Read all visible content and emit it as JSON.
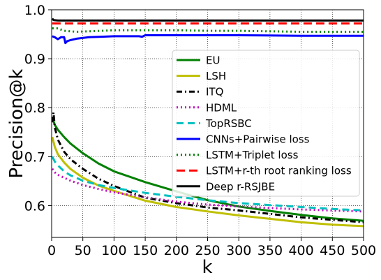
{
  "chart_data": {
    "type": "line",
    "xlabel": "k",
    "ylabel": "Precision@k",
    "xlim": [
      0,
      500
    ],
    "ylim": [
      0.535,
      1.0
    ],
    "xticks": [
      0,
      50,
      100,
      150,
      200,
      250,
      300,
      350,
      400,
      450,
      500
    ],
    "yticks": [
      0.6,
      0.7,
      0.8,
      0.9,
      1.0
    ],
    "xtick_labels": [
      "0",
      "50",
      "100",
      "150",
      "200",
      "250",
      "300",
      "350",
      "400",
      "450",
      "500"
    ],
    "ytick_labels": [
      "0.6",
      "0.7",
      "0.8",
      "0.9",
      "1.0"
    ],
    "grid": true,
    "legend_position": "center-right",
    "series": [
      {
        "name": "EU",
        "color": "#008000",
        "dash": "solid",
        "width": 3,
        "x": [
          1,
          5,
          10,
          20,
          30,
          50,
          75,
          100,
          150,
          200,
          250,
          300,
          350,
          400,
          450,
          500
        ],
        "y": [
          0.78,
          0.765,
          0.755,
          0.74,
          0.727,
          0.707,
          0.686,
          0.67,
          0.648,
          0.629,
          0.611,
          0.598,
          0.589,
          0.581,
          0.574,
          0.569
        ]
      },
      {
        "name": "LSH",
        "color": "#bfbf00",
        "dash": "solid",
        "width": 3,
        "x": [
          1,
          5,
          10,
          20,
          30,
          50,
          75,
          100,
          150,
          200,
          250,
          300,
          350,
          400,
          450,
          500
        ],
        "y": [
          0.74,
          0.72,
          0.705,
          0.688,
          0.675,
          0.657,
          0.641,
          0.63,
          0.61,
          0.597,
          0.588,
          0.58,
          0.573,
          0.566,
          0.561,
          0.558
        ]
      },
      {
        "name": "ITQ",
        "color": "#000000",
        "dash": "8,4,2,4",
        "width": 3,
        "x": [
          1,
          3,
          5,
          10,
          20,
          30,
          50,
          75,
          100,
          150,
          200,
          250,
          300,
          350,
          400,
          450,
          500
        ],
        "y": [
          0.77,
          0.79,
          0.76,
          0.735,
          0.71,
          0.695,
          0.675,
          0.655,
          0.64,
          0.616,
          0.605,
          0.596,
          0.59,
          0.583,
          0.576,
          0.571,
          0.566
        ]
      },
      {
        "name": "HDML",
        "color": "#bf00bf",
        "dash": "2,4",
        "width": 3,
        "x": [
          1,
          5,
          10,
          20,
          30,
          50,
          75,
          100,
          150,
          200,
          250,
          300,
          350,
          400,
          450,
          500
        ],
        "y": [
          0.675,
          0.668,
          0.663,
          0.657,
          0.651,
          0.642,
          0.634,
          0.627,
          0.617,
          0.608,
          0.602,
          0.598,
          0.595,
          0.592,
          0.59,
          0.588
        ]
      },
      {
        "name": "TopRSBC",
        "color": "#00bfbf",
        "dash": "10,6",
        "width": 3,
        "x": [
          1,
          5,
          10,
          20,
          30,
          50,
          75,
          100,
          150,
          200,
          250,
          300,
          350,
          400,
          450,
          500
        ],
        "y": [
          0.7,
          0.69,
          0.682,
          0.67,
          0.662,
          0.651,
          0.642,
          0.636,
          0.626,
          0.618,
          0.611,
          0.605,
          0.601,
          0.597,
          0.593,
          0.59
        ]
      },
      {
        "name": "CNNs+Pairwise loss",
        "color": "#0000ff",
        "dash": "solid",
        "width": 3,
        "x": [
          1,
          5,
          10,
          15,
          20,
          22,
          25,
          30,
          40,
          60,
          80,
          100,
          120,
          140,
          145,
          150,
          200,
          300,
          400,
          500
        ],
        "y": [
          0.946,
          0.944,
          0.94,
          0.944,
          0.944,
          0.932,
          0.936,
          0.938,
          0.941,
          0.944,
          0.945,
          0.946,
          0.946,
          0.946,
          0.945,
          0.948,
          0.948,
          0.948,
          0.947,
          0.947
        ]
      },
      {
        "name": "LSTM+Triplet loss",
        "color": "#008000",
        "dash": "2,4",
        "width": 3,
        "x": [
          1,
          10,
          20,
          40,
          60,
          100,
          150,
          200,
          250,
          300,
          350,
          400,
          450,
          500
        ],
        "y": [
          0.962,
          0.962,
          0.957,
          0.955,
          0.956,
          0.958,
          0.958,
          0.958,
          0.957,
          0.957,
          0.956,
          0.955,
          0.955,
          0.955
        ]
      },
      {
        "name": "LSTM+r-th root ranking loss",
        "color": "#ff0000",
        "dash": "12,6",
        "width": 3,
        "x": [
          1,
          50,
          100,
          200,
          300,
          400,
          500
        ],
        "y": [
          0.972,
          0.972,
          0.972,
          0.972,
          0.972,
          0.972,
          0.972
        ]
      },
      {
        "name": "Deep r-RSJBE",
        "color": "#000000",
        "dash": "solid",
        "width": 3,
        "x": [
          1,
          3,
          10,
          50,
          100,
          200,
          300,
          400,
          500
        ],
        "y": [
          0.982,
          0.979,
          0.978,
          0.978,
          0.978,
          0.978,
          0.978,
          0.978,
          0.978
        ]
      }
    ]
  }
}
